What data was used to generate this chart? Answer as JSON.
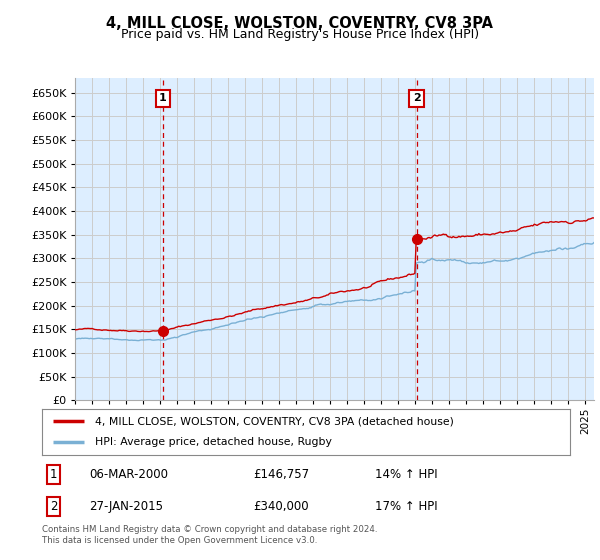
{
  "title": "4, MILL CLOSE, WOLSTON, COVENTRY, CV8 3PA",
  "subtitle": "Price paid vs. HM Land Registry's House Price Index (HPI)",
  "ytick_values": [
    0,
    50000,
    100000,
    150000,
    200000,
    250000,
    300000,
    350000,
    400000,
    450000,
    500000,
    550000,
    600000,
    650000
  ],
  "ylim": [
    0,
    680000
  ],
  "xlim_start": 1995.0,
  "xlim_end": 2025.5,
  "transaction1": {
    "date_x": 2000.17,
    "price": 146757,
    "label": "1"
  },
  "transaction2": {
    "date_x": 2015.07,
    "price": 340000,
    "label": "2"
  },
  "legend_line1": "4, MILL CLOSE, WOLSTON, COVENTRY, CV8 3PA (detached house)",
  "legend_line2": "HPI: Average price, detached house, Rugby",
  "annotation1_date": "06-MAR-2000",
  "annotation1_price": "£146,757",
  "annotation1_hpi": "14% ↑ HPI",
  "annotation2_date": "27-JAN-2015",
  "annotation2_price": "£340,000",
  "annotation2_hpi": "17% ↑ HPI",
  "footer": "Contains HM Land Registry data © Crown copyright and database right 2024.\nThis data is licensed under the Open Government Licence v3.0.",
  "line_color_red": "#cc0000",
  "line_color_blue": "#7ab0d4",
  "grid_color": "#cccccc",
  "background_color": "#ffffff",
  "plot_bg_color": "#ddeeff",
  "vline_color": "#cc0000",
  "box_color": "#cc0000"
}
